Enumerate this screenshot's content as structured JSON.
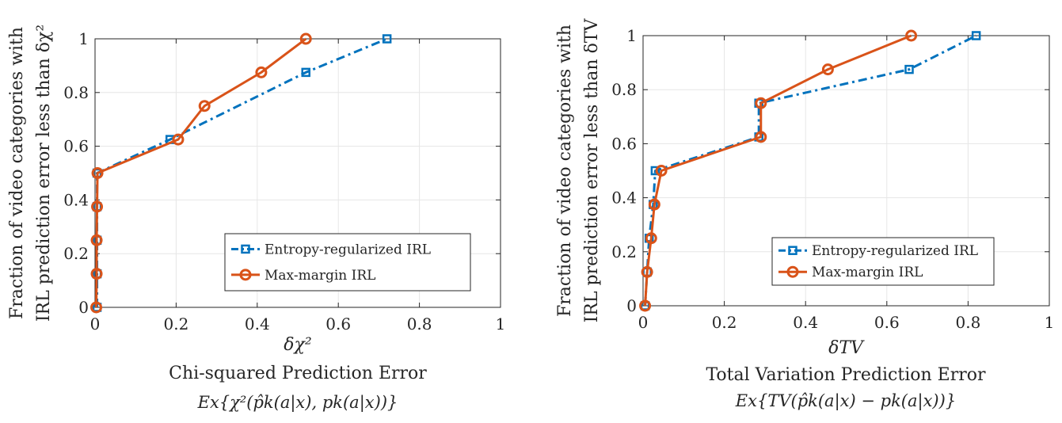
{
  "colors": {
    "entropy": "#0072bd",
    "maxmargin": "#d95319",
    "grid": "#e6e6e6",
    "axis": "#262626"
  },
  "chart_data": [
    {
      "type": "line",
      "xlabel": "δχ²",
      "ylabel": [
        "Fraction of video categories with",
        "IRL prediction error less than δχ²"
      ],
      "caption": [
        "Chi-squared Prediction Error",
        "Ex{χ²(p̂k(a|x), pk(a|x))}"
      ],
      "xlim": [
        0,
        1
      ],
      "ylim": [
        0,
        1
      ],
      "xticks": [
        "0",
        "0.2",
        "0.4",
        "0.6",
        "0.8",
        "1"
      ],
      "yticks": [
        "0",
        "0.2",
        "0.4",
        "0.6",
        "0.8",
        "1"
      ],
      "grid": true,
      "legend_position": "lower-right",
      "series": [
        {
          "name": "Entropy-regularized IRL",
          "style": "dash-dot",
          "marker": "square",
          "x": [
            0.005,
            0.005,
            0.005,
            0.005,
            0.005,
            0.185,
            0.52,
            0.72
          ],
          "y": [
            0,
            0.125,
            0.25,
            0.375,
            0.5,
            0.625,
            0.875,
            1.0
          ]
        },
        {
          "name": "Max-margin IRL",
          "style": "solid",
          "marker": "circle",
          "x": [
            0.003,
            0.004,
            0.004,
            0.005,
            0.006,
            0.205,
            0.27,
            0.41,
            0.52
          ],
          "y": [
            0,
            0.125,
            0.25,
            0.375,
            0.5,
            0.625,
            0.75,
            0.875,
            1.0
          ]
        }
      ]
    },
    {
      "type": "line",
      "xlabel": "δTV",
      "ylabel": [
        "Fraction of video categories with",
        "IRL prediction error less than δTV"
      ],
      "caption": [
        "Total Variation Prediction Error",
        "Ex{TV(p̂k(a|x) − pk(a|x))}"
      ],
      "xlim": [
        0,
        1
      ],
      "ylim": [
        0,
        1
      ],
      "xticks": [
        "0",
        "0.2",
        "0.4",
        "0.6",
        "0.8",
        "1"
      ],
      "yticks": [
        "0",
        "0.2",
        "0.4",
        "0.6",
        "0.8",
        "1"
      ],
      "grid": true,
      "legend_position": "lower-right",
      "series": [
        {
          "name": "Entropy-regularized IRL",
          "style": "dash-dot",
          "marker": "square",
          "x": [
            0.005,
            0.01,
            0.015,
            0.025,
            0.03,
            0.285,
            0.285,
            0.655,
            0.82
          ],
          "y": [
            0,
            0.125,
            0.25,
            0.375,
            0.5,
            0.625,
            0.75,
            0.875,
            1.0
          ]
        },
        {
          "name": "Max-margin IRL",
          "style": "solid",
          "marker": "circle",
          "x": [
            0.005,
            0.01,
            0.02,
            0.028,
            0.045,
            0.29,
            0.29,
            0.455,
            0.66
          ],
          "y": [
            0,
            0.125,
            0.25,
            0.375,
            0.5,
            0.625,
            0.75,
            0.875,
            1.0
          ]
        }
      ]
    }
  ]
}
